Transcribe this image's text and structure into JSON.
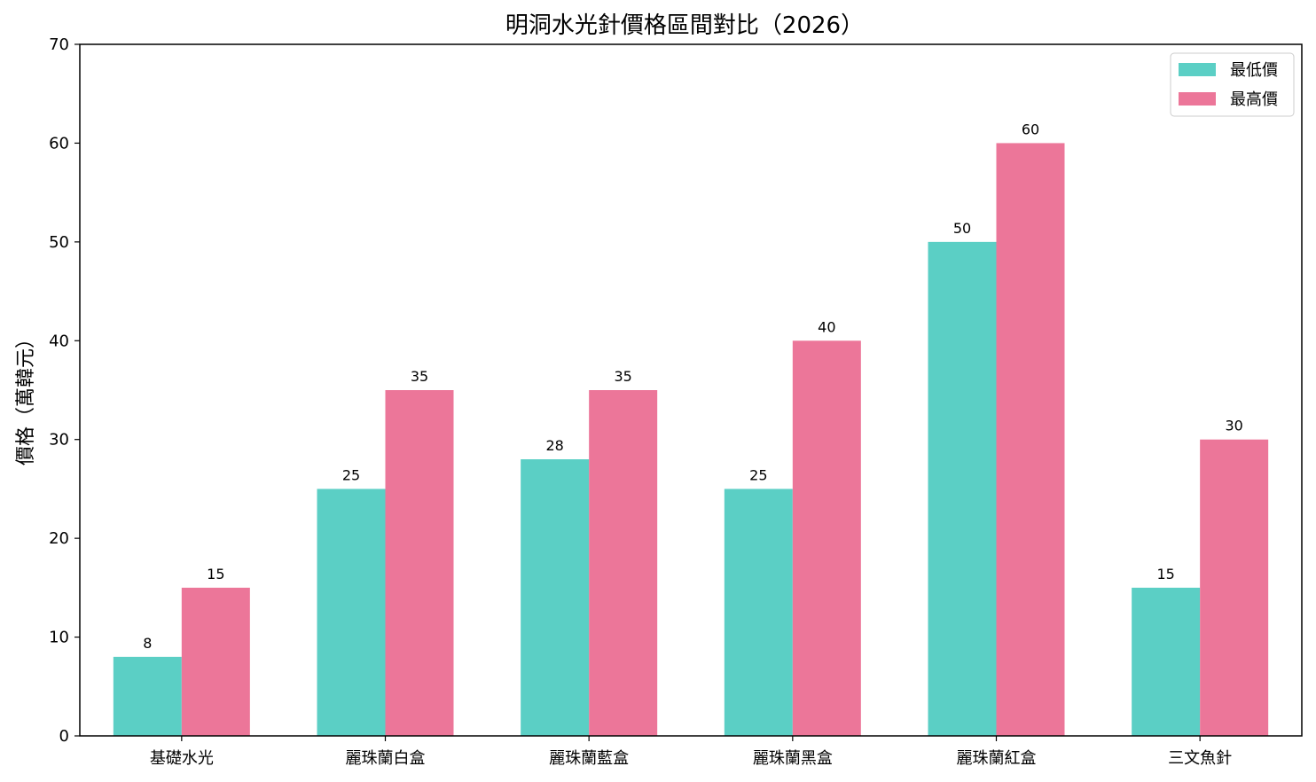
{
  "chart_data": {
    "type": "bar",
    "title": "明洞水光針價格區間對比（2026）",
    "xlabel": "",
    "ylabel": "價格（萬韓元）",
    "ylim": [
      0,
      70
    ],
    "yticks": [
      0,
      10,
      20,
      30,
      40,
      50,
      60,
      70
    ],
    "categories": [
      "基礎水光",
      "麗珠蘭白盒",
      "麗珠蘭藍盒",
      "麗珠蘭黑盒",
      "麗珠蘭紅盒",
      "三文魚針"
    ],
    "series": [
      {
        "name": "最低價",
        "color": "#5bcfc5",
        "values": [
          8,
          25,
          28,
          25,
          50,
          15
        ]
      },
      {
        "name": "最高價",
        "color": "#ec7699",
        "values": [
          15,
          35,
          35,
          40,
          60,
          30
        ]
      }
    ],
    "grid": false,
    "legend_position": "top-right",
    "data_labels": true
  }
}
